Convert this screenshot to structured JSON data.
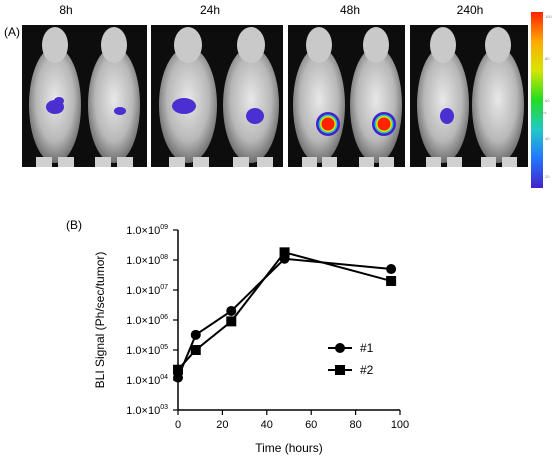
{
  "panel_a": {
    "label": "(A)",
    "time_labels": [
      "8h",
      "24h",
      "48h",
      "240h"
    ],
    "colorbar": {
      "colors": [
        "#ff2200",
        "#ffaa00",
        "#d8e600",
        "#22dd22",
        "#22c8c8",
        "#2277ff",
        "#4422c8"
      ],
      "unit": "p/s",
      "ticks": [
        "100",
        "80",
        "60",
        "40",
        "20"
      ]
    }
  },
  "panel_b": {
    "label": "(B)"
  },
  "chart_data": {
    "type": "line",
    "xlabel": "Time (hours)",
    "ylabel": "BLI Signal (Ph/sec/tumor)",
    "xlim": [
      0,
      100
    ],
    "ylim": [
      1000,
      1000000000
    ],
    "yscale": "log",
    "x_ticks": [
      "0",
      "20",
      "40",
      "60",
      "80",
      "100"
    ],
    "y_ticks": [
      "1.0×10",
      "1.0×10",
      "1.0×10",
      "1.0×10",
      "1.0×10",
      "1.0×10",
      "1.0×10"
    ],
    "y_tick_exponents": [
      "03",
      "04",
      "05",
      "06",
      "07",
      "08",
      "09"
    ],
    "series": [
      {
        "name": "#1",
        "marker": "circle",
        "x": [
          0,
          8,
          24,
          48,
          96
        ],
        "y": [
          12000,
          320000,
          2000000,
          110000000,
          50000000
        ]
      },
      {
        "name": "#2",
        "marker": "square",
        "x": [
          0,
          8,
          24,
          48,
          96
        ],
        "y": [
          22000,
          100000,
          900000,
          180000000,
          20000000
        ]
      }
    ],
    "legend_position": "right"
  }
}
